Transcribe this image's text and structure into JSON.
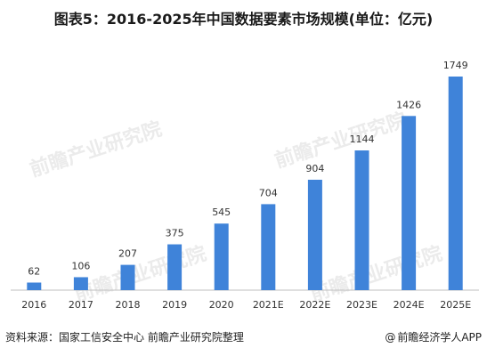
{
  "title": "图表5：2016-2025年中国数据要素市场规模(单位：亿元)",
  "watermark": "前瞻产业研究院",
  "footer": {
    "source": "资料来源：国家工信安全中心 前瞻产业研究院整理",
    "brand": "前瞻经济学人APP"
  },
  "colors": {
    "bar": "#3f83d9",
    "axis": "#bfbfbf",
    "label": "#333333"
  },
  "chart_data": {
    "type": "bar",
    "categories": [
      "2016",
      "2017",
      "2018",
      "2019",
      "2020",
      "2021E",
      "2022E",
      "2023E",
      "2024E",
      "2025E"
    ],
    "values": [
      62,
      106,
      207,
      375,
      545,
      704,
      904,
      1144,
      1426,
      1749
    ],
    "title": "图表5：2016-2025年中国数据要素市场规模(单位：亿元)",
    "xlabel": "",
    "ylabel": "",
    "ylim": [
      0,
      1749
    ],
    "grid": false,
    "legend": "none"
  }
}
